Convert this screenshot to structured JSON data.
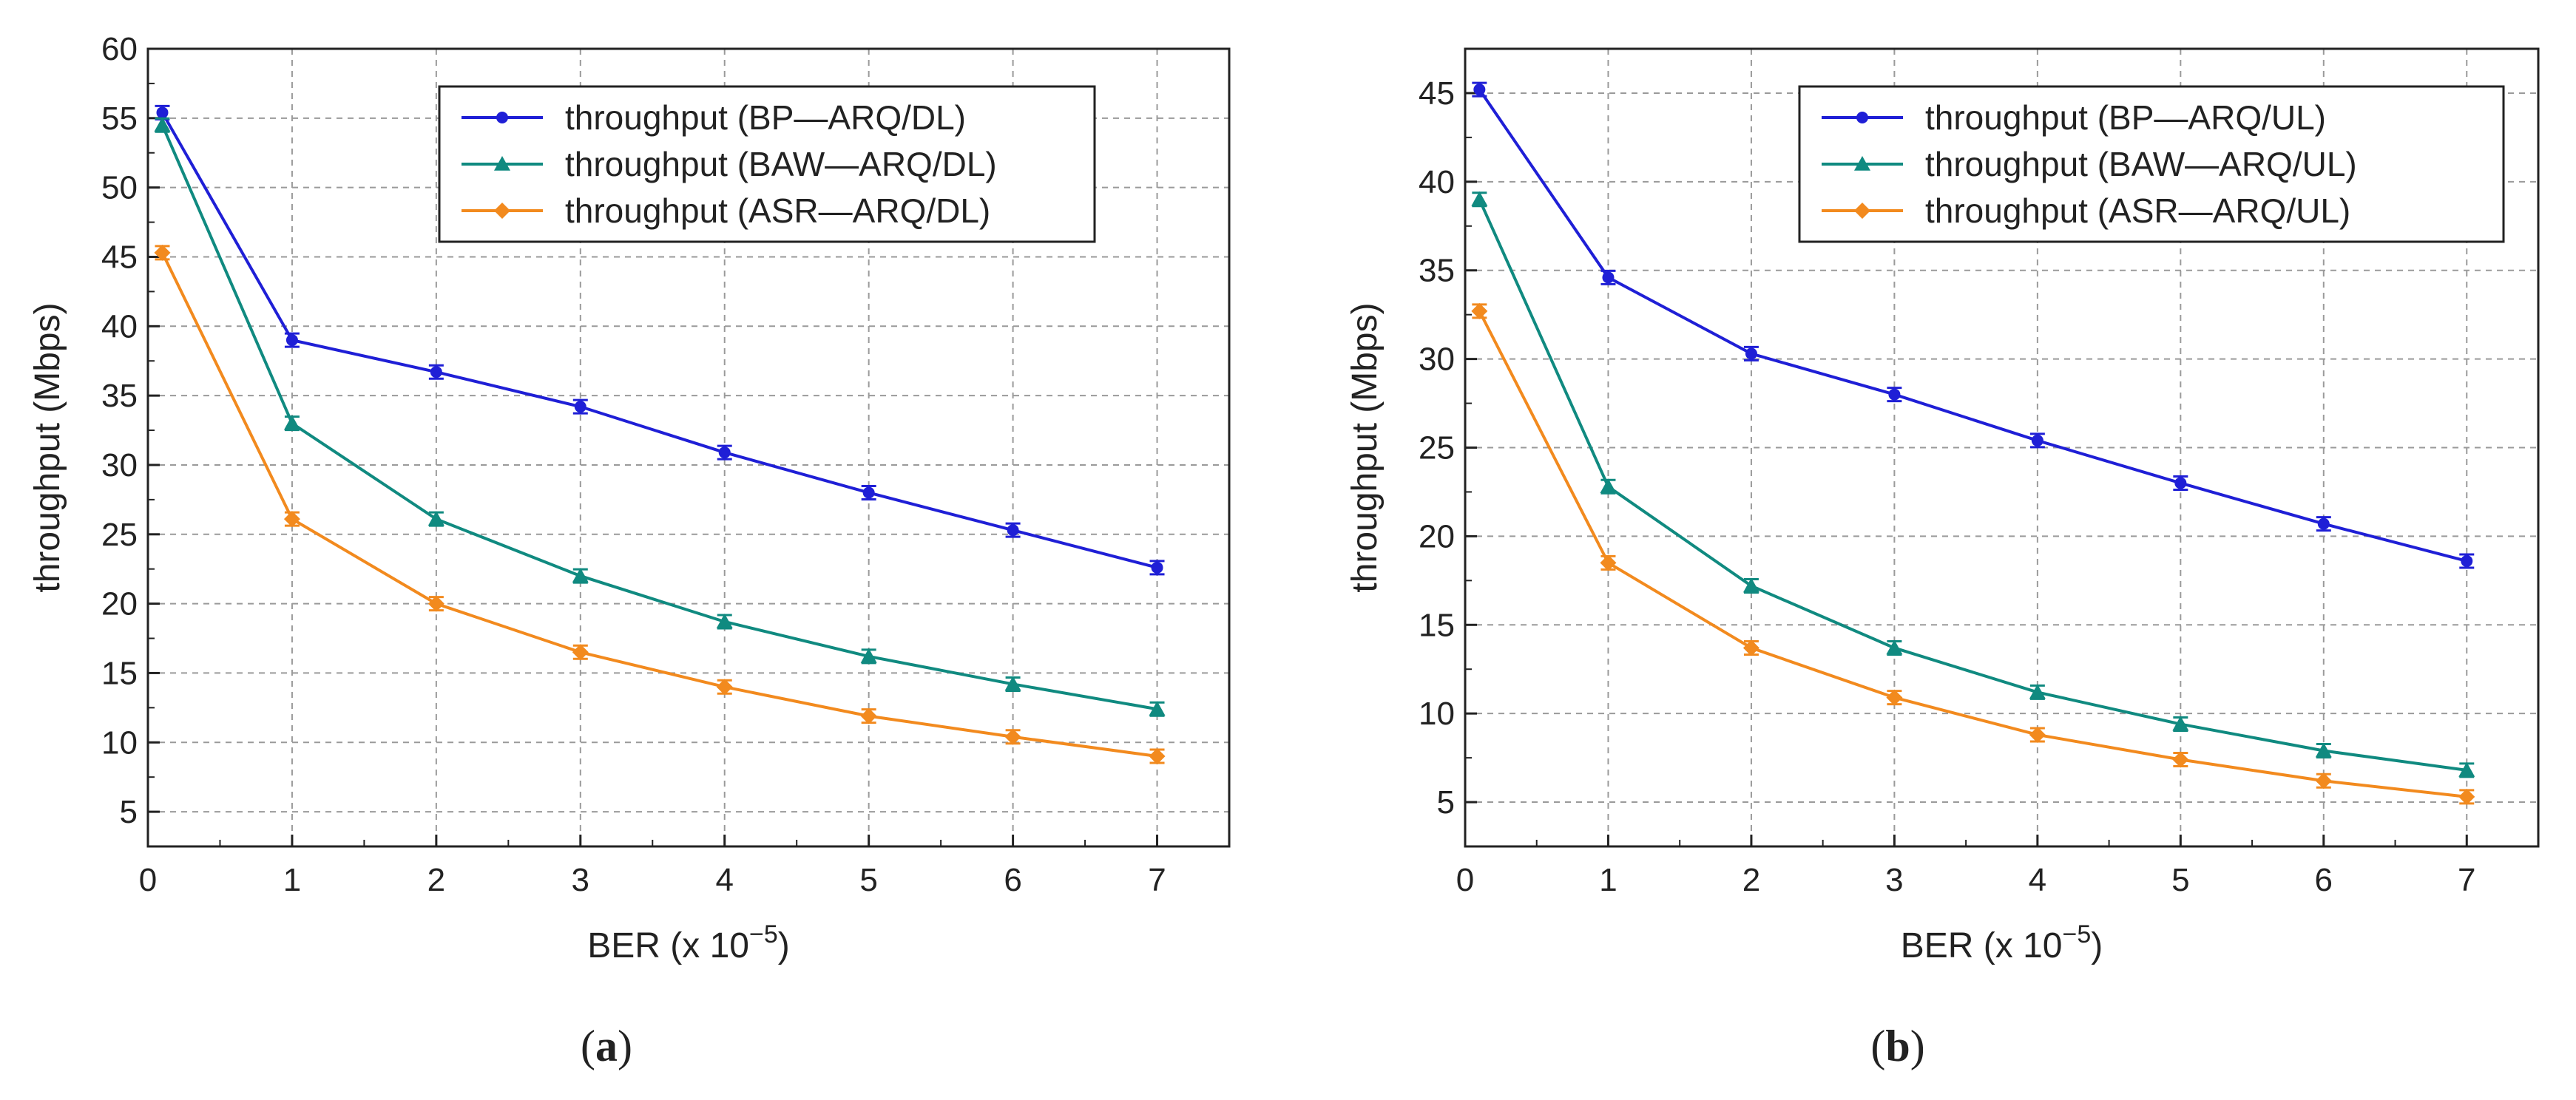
{
  "chart_data": [
    {
      "type": "line",
      "title": "",
      "sub_caption_prefix": "(",
      "sub_caption": "a",
      "sub_caption_suffix": ")",
      "xlabel": "BER (x 10",
      "xlabel_exp": "−5",
      "xlabel_suffix": ")",
      "ylabel": "throughput (Mbps)",
      "xlim": [
        0,
        7.5
      ],
      "ylim": [
        2.5,
        60
      ],
      "xticks": [
        0,
        1,
        2,
        3,
        4,
        5,
        6,
        7
      ],
      "yticks": [
        5,
        10,
        15,
        20,
        25,
        30,
        35,
        40,
        45,
        50,
        55,
        60
      ],
      "grid": true,
      "legend_position": "top-right",
      "series": [
        {
          "name": "throughput (BP—ARQ/DL)",
          "color": "#1f1fd6",
          "marker": "circle",
          "x": [
            0.1,
            1,
            2,
            3,
            4,
            5,
            6,
            7
          ],
          "values": [
            55.4,
            39.0,
            36.7,
            34.2,
            30.9,
            28.0,
            25.3,
            22.6
          ]
        },
        {
          "name": "throughput (BAW—ARQ/DL)",
          "color": "#108a80",
          "marker": "triangle",
          "x": [
            0.1,
            1,
            2,
            3,
            4,
            5,
            6,
            7
          ],
          "values": [
            54.5,
            33.0,
            26.1,
            22.0,
            18.7,
            16.2,
            14.2,
            12.4
          ]
        },
        {
          "name": "throughput (ASR—ARQ/DL)",
          "color": "#f28a1e",
          "marker": "diamond",
          "x": [
            0.1,
            1,
            2,
            3,
            4,
            5,
            6,
            7
          ],
          "values": [
            45.3,
            26.1,
            20.0,
            16.5,
            14.0,
            11.9,
            10.4,
            9.0
          ]
        }
      ]
    },
    {
      "type": "line",
      "title": "",
      "sub_caption_prefix": "(",
      "sub_caption": "b",
      "sub_caption_suffix": ")",
      "xlabel": "BER (x 10",
      "xlabel_exp": "−5",
      "xlabel_suffix": ")",
      "ylabel": "throughput (Mbps)",
      "xlim": [
        0,
        7.5
      ],
      "ylim": [
        2.5,
        47.5
      ],
      "xticks": [
        0,
        1,
        2,
        3,
        4,
        5,
        6,
        7
      ],
      "yticks": [
        5,
        10,
        15,
        20,
        25,
        30,
        35,
        40,
        45
      ],
      "grid": true,
      "legend_position": "top-right",
      "series": [
        {
          "name": "throughput (BP—ARQ/UL)",
          "color": "#1f1fd6",
          "marker": "circle",
          "x": [
            0.1,
            1,
            2,
            3,
            4,
            5,
            6,
            7
          ],
          "values": [
            45.2,
            34.6,
            30.3,
            28.0,
            25.4,
            23.0,
            20.7,
            18.6
          ]
        },
        {
          "name": "throughput (BAW—ARQ/UL)",
          "color": "#108a80",
          "marker": "triangle",
          "x": [
            0.1,
            1,
            2,
            3,
            4,
            5,
            6,
            7
          ],
          "values": [
            39.0,
            22.8,
            17.2,
            13.7,
            11.2,
            9.4,
            7.9,
            6.8
          ]
        },
        {
          "name": "throughput (ASR—ARQ/UL)",
          "color": "#f28a1e",
          "marker": "diamond",
          "x": [
            0.1,
            1,
            2,
            3,
            4,
            5,
            6,
            7
          ],
          "values": [
            32.7,
            18.5,
            13.7,
            10.9,
            8.8,
            7.4,
            6.2,
            5.3
          ]
        }
      ]
    }
  ]
}
